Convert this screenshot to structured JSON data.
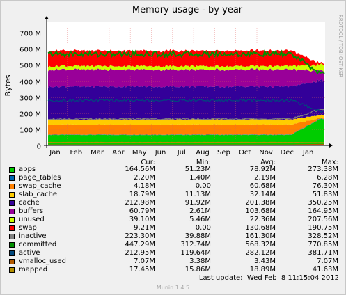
{
  "chart_data": {
    "type": "area",
    "title": "Memory usage - by year",
    "ylabel": "Bytes",
    "side_label": "RRDTOOL / TOBI OETIKER",
    "ylim": [
      0,
      770000000
    ],
    "yticks": [
      "0",
      "100 M",
      "200 M",
      "300 M",
      "400 M",
      "500 M",
      "600 M",
      "700 M"
    ],
    "ytick_values": [
      0,
      100000000,
      200000000,
      300000000,
      400000000,
      500000000,
      600000000,
      700000000
    ],
    "months": [
      "Jan",
      "Feb",
      "Mar",
      "Apr",
      "May",
      "Jun",
      "Jul",
      "Aug",
      "Sep",
      "Oct",
      "Nov",
      "Dec",
      "Jan"
    ],
    "grid": true,
    "stack_series": [
      {
        "name": "apps",
        "color": "#00cc00",
        "baseline_m": 65,
        "end_m": 164.56
      },
      {
        "name": "page_tables",
        "color": "#0066b3",
        "baseline_m": 2,
        "end_m": 2.2
      },
      {
        "name": "swap_cache",
        "color": "#ff8000",
        "baseline_m": 62,
        "end_m": 4.18
      },
      {
        "name": "slab_cache",
        "color": "#ffcc00",
        "baseline_m": 32,
        "end_m": 18.79
      },
      {
        "name": "cache",
        "color": "#330099",
        "baseline_m": 205,
        "end_m": 212.98
      },
      {
        "name": "buffers",
        "color": "#990099",
        "baseline_m": 105,
        "end_m": 60.79
      },
      {
        "name": "unused",
        "color": "#ccff00",
        "baseline_m": 22,
        "end_m": 39.1
      },
      {
        "name": "swap",
        "color": "#ff0000",
        "baseline_m": 95,
        "end_m": 9.21
      }
    ],
    "line_series": [
      {
        "name": "inactive",
        "color": "#808080",
        "baseline_m": 165,
        "end_m": 223.3
      },
      {
        "name": "committed",
        "color": "#008f00",
        "baseline_m": 568,
        "end_m": 447.29
      },
      {
        "name": "active",
        "color": "#00487d",
        "baseline_m": 280,
        "end_m": 212.95
      },
      {
        "name": "vmalloc_used",
        "color": "#b35a00",
        "baseline_m": 3.4,
        "end_m": 7.07
      },
      {
        "name": "mapped",
        "color": "#b38f00",
        "baseline_m": 19,
        "end_m": 17.45
      }
    ]
  },
  "legend": {
    "headers": {
      "cur": "Cur:",
      "min": "Min:",
      "avg": "Avg:",
      "max": "Max:"
    },
    "rows": [
      {
        "name": "apps",
        "color": "#00cc00",
        "cur": "164.56M",
        "min": "51.23M",
        "avg": "78.92M",
        "max": "273.38M"
      },
      {
        "name": "page_tables",
        "color": "#0066b3",
        "cur": "2.20M",
        "min": "1.40M",
        "avg": "2.19M",
        "max": "6.28M"
      },
      {
        "name": "swap_cache",
        "color": "#ff8000",
        "cur": "4.18M",
        "min": "0.00",
        "avg": "60.68M",
        "max": "76.30M"
      },
      {
        "name": "slab_cache",
        "color": "#ffcc00",
        "cur": "18.79M",
        "min": "11.13M",
        "avg": "32.14M",
        "max": "51.83M"
      },
      {
        "name": "cache",
        "color": "#330099",
        "cur": "212.98M",
        "min": "91.92M",
        "avg": "201.38M",
        "max": "350.25M"
      },
      {
        "name": "buffers",
        "color": "#990099",
        "cur": "60.79M",
        "min": "2.61M",
        "avg": "103.68M",
        "max": "164.95M"
      },
      {
        "name": "unused",
        "color": "#ccff00",
        "cur": "39.10M",
        "min": "5.46M",
        "avg": "22.36M",
        "max": "207.56M"
      },
      {
        "name": "swap",
        "color": "#ff0000",
        "cur": "9.21M",
        "min": "0.00",
        "avg": "130.68M",
        "max": "190.75M"
      },
      {
        "name": "inactive",
        "color": "#808080",
        "cur": "223.30M",
        "min": "39.88M",
        "avg": "161.30M",
        "max": "328.52M"
      },
      {
        "name": "committed",
        "color": "#008f00",
        "cur": "447.29M",
        "min": "312.74M",
        "avg": "568.32M",
        "max": "770.85M"
      },
      {
        "name": "active",
        "color": "#00487d",
        "cur": "212.95M",
        "min": "119.64M",
        "avg": "282.12M",
        "max": "381.71M"
      },
      {
        "name": "vmalloc_used",
        "color": "#b35a00",
        "cur": "7.07M",
        "min": "3.38M",
        "avg": "3.43M",
        "max": "7.07M"
      },
      {
        "name": "mapped",
        "color": "#b38f00",
        "cur": "17.45M",
        "min": "15.86M",
        "avg": "18.89M",
        "max": "41.63M"
      }
    ]
  },
  "footer": {
    "last_update": "Last update:  Wed Feb  8 11:15:04 2012",
    "version": "Munin 1.4.5"
  }
}
